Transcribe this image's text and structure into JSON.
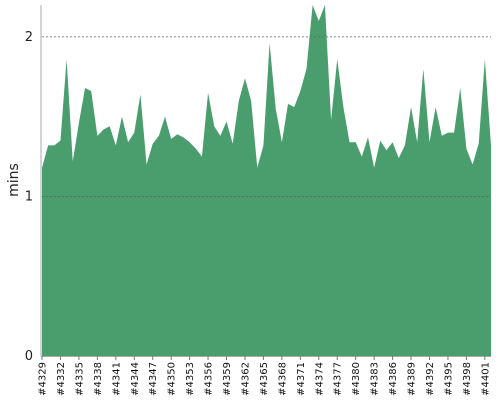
{
  "chart_data": {
    "type": "area",
    "title": "",
    "xlabel": "",
    "ylabel": "mins",
    "ylim": [
      0,
      2.2
    ],
    "yticks": [
      0,
      1,
      2
    ],
    "grid": true,
    "fill_color": "#4a9e6e",
    "x": [
      "#4329",
      "#4330",
      "#4331",
      "#4332",
      "#4333",
      "#4334",
      "#4335",
      "#4336",
      "#4337",
      "#4338",
      "#4339",
      "#4340",
      "#4341",
      "#4342",
      "#4343",
      "#4344",
      "#4345",
      "#4346",
      "#4347",
      "#4348",
      "#4349",
      "#4350",
      "#4351",
      "#4352",
      "#4353",
      "#4354",
      "#4355",
      "#4356",
      "#4357",
      "#4358",
      "#4359",
      "#4360",
      "#4361",
      "#4362",
      "#4363",
      "#4364",
      "#4365",
      "#4366",
      "#4367",
      "#4368",
      "#4369",
      "#4370",
      "#4371",
      "#4372",
      "#4373",
      "#4374",
      "#4375",
      "#4376",
      "#4377",
      "#4378",
      "#4379",
      "#4380",
      "#4381",
      "#4382",
      "#4383",
      "#4384",
      "#4385",
      "#4386",
      "#4387",
      "#4388",
      "#4389",
      "#4390",
      "#4391",
      "#4392",
      "#4393",
      "#4394",
      "#4395",
      "#4396",
      "#4397",
      "#4398",
      "#4399",
      "#4400",
      "#4401",
      "#4402"
    ],
    "tick_labels": [
      "#4329",
      "#4332",
      "#4335",
      "#4338",
      "#4341",
      "#4344",
      "#4347",
      "#4350",
      "#4353",
      "#4356",
      "#4359",
      "#4362",
      "#4365",
      "#4368",
      "#4371",
      "#4374",
      "#4377",
      "#4380",
      "#4383",
      "#4386",
      "#4389",
      "#4392",
      "#4395",
      "#4398",
      "#4401"
    ],
    "values": [
      1.18,
      1.32,
      1.32,
      1.35,
      1.86,
      1.22,
      1.46,
      1.68,
      1.66,
      1.38,
      1.42,
      1.44,
      1.32,
      1.5,
      1.34,
      1.4,
      1.64,
      1.2,
      1.33,
      1.38,
      1.5,
      1.36,
      1.39,
      1.37,
      1.34,
      1.3,
      1.25,
      1.65,
      1.44,
      1.38,
      1.47,
      1.33,
      1.6,
      1.74,
      1.6,
      1.18,
      1.32,
      1.96,
      1.55,
      1.34,
      1.58,
      1.56,
      1.66,
      1.8,
      2.5,
      2.1,
      2.5,
      1.48,
      1.86,
      1.56,
      1.34,
      1.34,
      1.25,
      1.37,
      1.18,
      1.35,
      1.29,
      1.34,
      1.24,
      1.32,
      1.56,
      1.34,
      1.8,
      1.34,
      1.56,
      1.38,
      1.4,
      1.4,
      1.68,
      1.3,
      1.2,
      1.33,
      1.86,
      1.32
    ]
  }
}
